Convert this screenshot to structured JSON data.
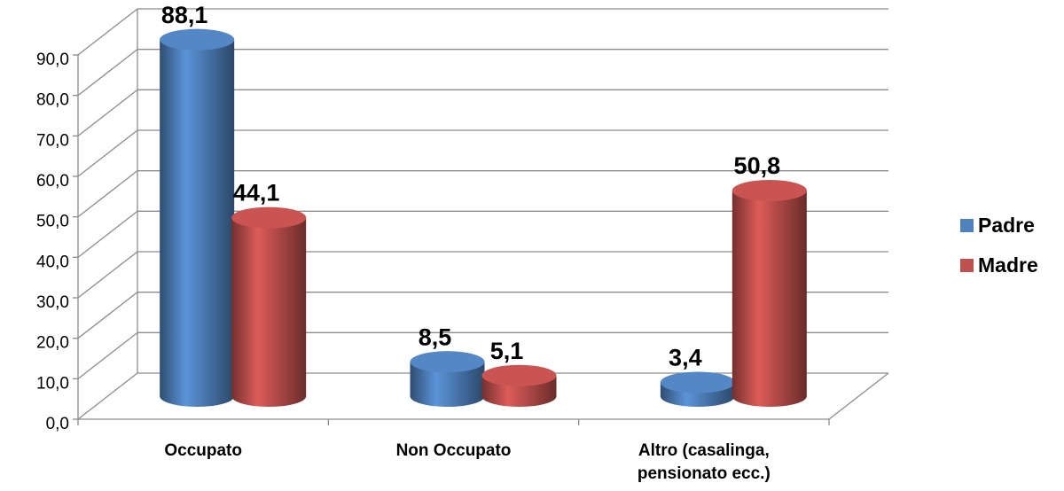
{
  "chart_data": {
    "type": "bar3d",
    "categories": [
      "Occupato",
      "Non Occupato",
      "Altro (casalinga, pensionato ecc.)"
    ],
    "series": [
      {
        "name": "Padre",
        "color": "#4f81bd",
        "values": [
          88.1,
          8.5,
          3.4
        ],
        "value_labels": [
          "88,1",
          "8,5",
          "3,4"
        ]
      },
      {
        "name": "Madre",
        "color": "#c0504d",
        "values": [
          44.1,
          5.1,
          50.8
        ],
        "value_labels": [
          "44,1",
          "5,1",
          "50,8"
        ]
      }
    ],
    "ylim": [
      0,
      90
    ],
    "yticks": [
      {
        "value": 0,
        "label": "0,0"
      },
      {
        "value": 10,
        "label": "10,0"
      },
      {
        "value": 20,
        "label": "20,0"
      },
      {
        "value": 30,
        "label": "30,0"
      },
      {
        "value": 40,
        "label": "40,0"
      },
      {
        "value": 50,
        "label": "50,0"
      },
      {
        "value": 60,
        "label": "60,0"
      },
      {
        "value": 70,
        "label": "70,0"
      },
      {
        "value": 80,
        "label": "80,0"
      },
      {
        "value": 90,
        "label": "90,0"
      }
    ],
    "grid": true,
    "legend": "right"
  }
}
